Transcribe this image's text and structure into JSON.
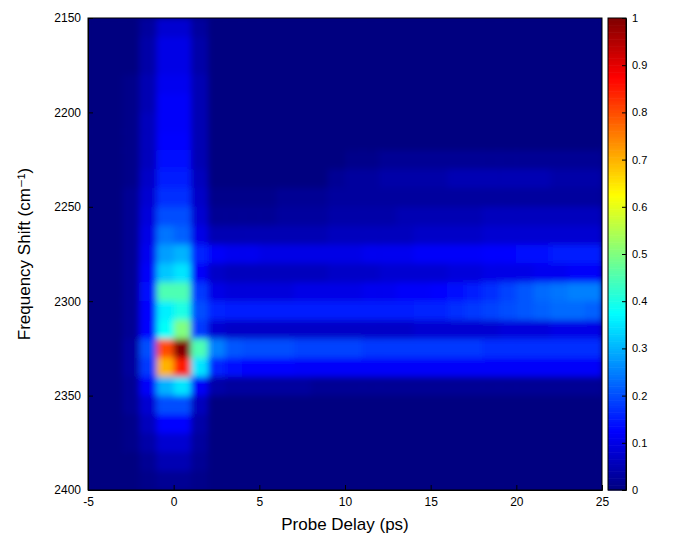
{
  "chart_data": {
    "type": "heatmap",
    "x_label": "Probe Delay (ps)",
    "y_label": "Frequency Shift (cm⁻¹)",
    "xlim": [
      -5,
      25
    ],
    "xticks": [
      -5,
      0,
      5,
      10,
      15,
      20,
      25
    ],
    "ylim": [
      2400,
      2150
    ],
    "yticks": [
      2150,
      2200,
      2250,
      2300,
      2350,
      2400
    ],
    "x_edges": [
      -5,
      -4,
      -3,
      -2,
      -1,
      0,
      1,
      2,
      3,
      4,
      5,
      6,
      7,
      8,
      9,
      10,
      11,
      12,
      13,
      14,
      15,
      16,
      17,
      18,
      19,
      20,
      21,
      22,
      23,
      24,
      25
    ],
    "y_edges": [
      2150,
      2160,
      2170,
      2180,
      2190,
      2200,
      2210,
      2220,
      2230,
      2240,
      2250,
      2260,
      2270,
      2280,
      2290,
      2300,
      2310,
      2320,
      2330,
      2340,
      2350,
      2360,
      2370,
      2380,
      2390,
      2400
    ],
    "z": [
      [
        0,
        0,
        0,
        0.03,
        0.08,
        0.08,
        0.03,
        0,
        0,
        0,
        0,
        0,
        0,
        0,
        0,
        0,
        0,
        0,
        0,
        0,
        0,
        0,
        0,
        0,
        0,
        0,
        0,
        0,
        0,
        0
      ],
      [
        0,
        0,
        0,
        0.04,
        0.1,
        0.1,
        0.04,
        0,
        0,
        0,
        0,
        0,
        0,
        0,
        0,
        0,
        0,
        0,
        0,
        0,
        0,
        0,
        0,
        0,
        0,
        0,
        0,
        0,
        0,
        0
      ],
      [
        0,
        0,
        0,
        0.04,
        0.1,
        0.1,
        0.04,
        0,
        0,
        0,
        0,
        0,
        0,
        0,
        0,
        0,
        0,
        0,
        0,
        0,
        0,
        0,
        0,
        0,
        0,
        0,
        0,
        0,
        0,
        0
      ],
      [
        0,
        0,
        0.01,
        0.05,
        0.11,
        0.11,
        0.05,
        0,
        0,
        0,
        0,
        0,
        0,
        0,
        0,
        0,
        0,
        0,
        0,
        0,
        0,
        0,
        0,
        0,
        0,
        0,
        0,
        0,
        0,
        0
      ],
      [
        0,
        0,
        0.01,
        0.05,
        0.12,
        0.12,
        0.05,
        0,
        0,
        0,
        0,
        0,
        0,
        0,
        0,
        0,
        0,
        0,
        0,
        0,
        0,
        0,
        0,
        0,
        0,
        0,
        0,
        0,
        0,
        0
      ],
      [
        0,
        0,
        0.01,
        0.06,
        0.12,
        0.12,
        0.05,
        0,
        0,
        0,
        0,
        0,
        0,
        0,
        0,
        0,
        0,
        0,
        0,
        0,
        0,
        0,
        0,
        0,
        0,
        0,
        0,
        0,
        0,
        0
      ],
      [
        0,
        0,
        0.01,
        0.06,
        0.13,
        0.13,
        0.05,
        0,
        0,
        0,
        0,
        0,
        0,
        0,
        0,
        0,
        0,
        0,
        0,
        0,
        0,
        0,
        0,
        0,
        0,
        0,
        0,
        0,
        0,
        0
      ],
      [
        0,
        0,
        0.01,
        0.06,
        0.14,
        0.14,
        0.05,
        0,
        0,
        0,
        0,
        0,
        0,
        0,
        0,
        0.01,
        0.01,
        0.02,
        0.02,
        0.02,
        0.02,
        0.02,
        0.02,
        0.02,
        0.02,
        0.02,
        0.02,
        0.02,
        0.02,
        0.02
      ],
      [
        0,
        0,
        0.01,
        0.07,
        0.15,
        0.15,
        0.06,
        0,
        0,
        0,
        0,
        0,
        0,
        0,
        0.02,
        0.03,
        0.03,
        0.04,
        0.04,
        0.04,
        0.04,
        0.05,
        0.05,
        0.05,
        0.05,
        0.05,
        0.05,
        0.04,
        0.04,
        0.04
      ],
      [
        0,
        0,
        0.02,
        0.08,
        0.17,
        0.17,
        0.07,
        0.01,
        0.01,
        0.01,
        0.01,
        0.02,
        0.02,
        0.02,
        0.03,
        0.03,
        0.03,
        0.03,
        0.03,
        0.03,
        0.03,
        0.03,
        0.03,
        0.03,
        0.03,
        0.03,
        0.03,
        0.03,
        0.03,
        0.03
      ],
      [
        0,
        0,
        0.02,
        0.09,
        0.2,
        0.2,
        0.08,
        0.02,
        0.02,
        0.02,
        0.02,
        0.03,
        0.03,
        0.03,
        0.04,
        0.04,
        0.04,
        0.04,
        0.05,
        0.05,
        0.05,
        0.05,
        0.05,
        0.06,
        0.06,
        0.06,
        0.06,
        0.06,
        0.06,
        0.06
      ],
      [
        0,
        0,
        0.02,
        0.1,
        0.24,
        0.22,
        0.1,
        0.05,
        0.05,
        0.05,
        0.05,
        0.05,
        0.05,
        0.05,
        0.06,
        0.06,
        0.06,
        0.06,
        0.06,
        0.07,
        0.07,
        0.07,
        0.07,
        0.08,
        0.08,
        0.08,
        0.08,
        0.08,
        0.08,
        0.08
      ],
      [
        0,
        0,
        0.02,
        0.11,
        0.28,
        0.3,
        0.16,
        0.12,
        0.11,
        0.11,
        0.1,
        0.1,
        0.1,
        0.1,
        0.1,
        0.1,
        0.11,
        0.11,
        0.11,
        0.12,
        0.12,
        0.12,
        0.12,
        0.13,
        0.13,
        0.14,
        0.14,
        0.15,
        0.15,
        0.15
      ],
      [
        0,
        0,
        0.02,
        0.12,
        0.32,
        0.35,
        0.12,
        0.07,
        0.06,
        0.06,
        0.06,
        0.06,
        0.06,
        0.06,
        0.07,
        0.07,
        0.07,
        0.08,
        0.08,
        0.08,
        0.08,
        0.09,
        0.09,
        0.1,
        0.1,
        0.1,
        0.11,
        0.11,
        0.12,
        0.12
      ],
      [
        0,
        0,
        0.02,
        0.14,
        0.45,
        0.45,
        0.18,
        0.1,
        0.09,
        0.09,
        0.09,
        0.09,
        0.1,
        0.1,
        0.1,
        0.1,
        0.11,
        0.11,
        0.12,
        0.12,
        0.13,
        0.14,
        0.15,
        0.17,
        0.19,
        0.21,
        0.23,
        0.24,
        0.25,
        0.25
      ],
      [
        0,
        0,
        0.02,
        0.13,
        0.36,
        0.4,
        0.2,
        0.16,
        0.15,
        0.15,
        0.15,
        0.15,
        0.15,
        0.15,
        0.15,
        0.15,
        0.15,
        0.15,
        0.15,
        0.16,
        0.16,
        0.17,
        0.18,
        0.19,
        0.2,
        0.21,
        0.22,
        0.23,
        0.23,
        0.22
      ],
      [
        0,
        0,
        0.02,
        0.13,
        0.38,
        0.5,
        0.18,
        0.08,
        0.07,
        0.07,
        0.07,
        0.07,
        0.07,
        0.07,
        0.07,
        0.07,
        0.07,
        0.07,
        0.07,
        0.08,
        0.08,
        0.08,
        0.08,
        0.08,
        0.09,
        0.09,
        0.09,
        0.1,
        0.1,
        0.1
      ],
      [
        0,
        0,
        0.03,
        0.2,
        0.8,
        1,
        0.45,
        0.25,
        0.21,
        0.2,
        0.2,
        0.2,
        0.19,
        0.19,
        0.19,
        0.19,
        0.18,
        0.18,
        0.18,
        0.18,
        0.18,
        0.18,
        0.18,
        0.17,
        0.17,
        0.17,
        0.17,
        0.17,
        0.17,
        0.17
      ],
      [
        0,
        0,
        0.03,
        0.18,
        0.7,
        0.85,
        0.35,
        0.16,
        0.14,
        0.13,
        0.13,
        0.13,
        0.12,
        0.12,
        0.12,
        0.12,
        0.12,
        0.12,
        0.12,
        0.12,
        0.12,
        0.12,
        0.12,
        0.12,
        0.12,
        0.12,
        0.12,
        0.12,
        0.12,
        0.12
      ],
      [
        0,
        0,
        0.02,
        0.12,
        0.3,
        0.35,
        0.12,
        0.04,
        0.03,
        0.03,
        0.03,
        0.03,
        0.03,
        0.02,
        0.02,
        0.02,
        0.02,
        0.02,
        0.02,
        0.02,
        0.02,
        0.02,
        0.02,
        0.02,
        0.02,
        0.02,
        0.02,
        0.02,
        0.02,
        0.02
      ],
      [
        0,
        0,
        0.02,
        0.08,
        0.2,
        0.2,
        0.06,
        0,
        0,
        0,
        0,
        0,
        0,
        0,
        0,
        0,
        0,
        0,
        0,
        0,
        0,
        0,
        0,
        0,
        0,
        0,
        0,
        0,
        0,
        0
      ],
      [
        0,
        0,
        0.01,
        0.06,
        0.13,
        0.13,
        0.04,
        0,
        0,
        0,
        0,
        0,
        0,
        0,
        0,
        0,
        0,
        0,
        0,
        0,
        0,
        0,
        0,
        0,
        0,
        0,
        0,
        0,
        0,
        0
      ],
      [
        0,
        0,
        0.01,
        0.04,
        0.08,
        0.08,
        0.03,
        0,
        0,
        0,
        0,
        0,
        0,
        0,
        0,
        0,
        0,
        0,
        0,
        0,
        0,
        0,
        0,
        0,
        0,
        0,
        0,
        0,
        0,
        0
      ],
      [
        0,
        0,
        0,
        0.02,
        0.05,
        0.05,
        0.02,
        0,
        0,
        0,
        0,
        0,
        0,
        0,
        0,
        0,
        0,
        0,
        0,
        0,
        0,
        0,
        0,
        0,
        0,
        0,
        0,
        0,
        0,
        0
      ],
      [
        0,
        0,
        0,
        0.01,
        0.02,
        0.02,
        0.01,
        0,
        0,
        0,
        0,
        0,
        0,
        0,
        0,
        0,
        0,
        0,
        0,
        0,
        0,
        0,
        0,
        0,
        0,
        0,
        0,
        0,
        0,
        0
      ]
    ],
    "color_range": [
      0,
      1
    ],
    "color_ticks": [
      0,
      0.1,
      0.2,
      0.3,
      0.4,
      0.5,
      0.6,
      0.7,
      0.8,
      0.9,
      1
    ]
  }
}
